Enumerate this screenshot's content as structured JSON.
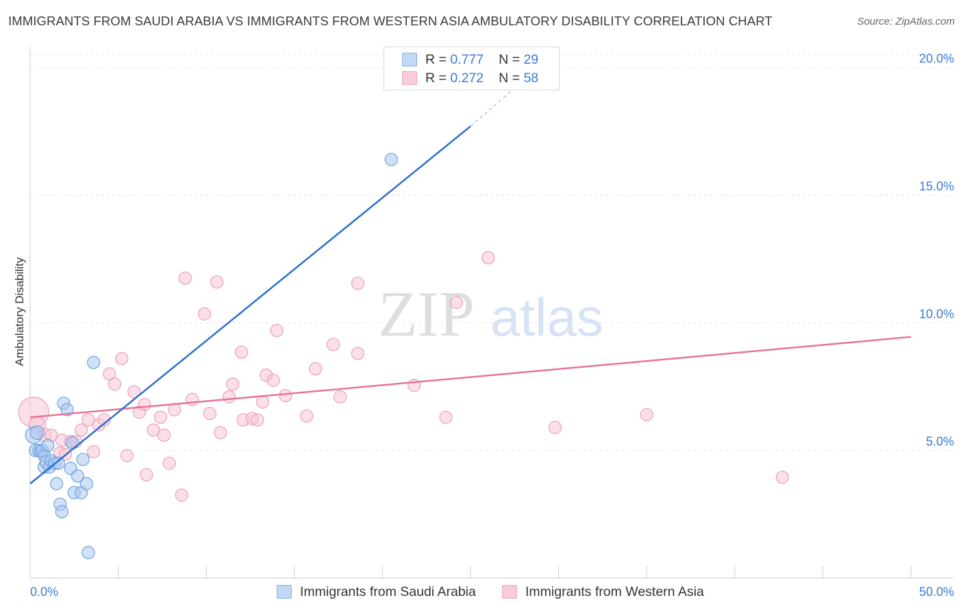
{
  "chart_title": "IMMIGRANTS FROM SAUDI ARABIA VS IMMIGRANTS FROM WESTERN ASIA AMBULATORY DISABILITY CORRELATION CHART",
  "source": "Source: ZipAtlas.com",
  "watermark": {
    "part1": "ZIP",
    "part2": "atlas"
  },
  "legend": {
    "r_label": "R =",
    "n_label": "N =",
    "rows": [
      {
        "r": "0.777",
        "n": "29",
        "color": "#a9c8f2"
      },
      {
        "r": "0.272",
        "n": "58",
        "color": "#f7b9cc"
      }
    ]
  },
  "colors": {
    "blue_fill": "#a9c8f2",
    "blue_stroke": "#6ea0e0",
    "blue_line": "#2b6fcf",
    "pink_fill": "#f7c6d5",
    "pink_stroke": "#eb9fb8",
    "pink_line": "#e5739b",
    "tick_label": "#3a7bd5",
    "grid": "#e2e2e2"
  },
  "chart_data": {
    "type": "scatter",
    "title": "IMMIGRANTS FROM SAUDI ARABIA VS IMMIGRANTS FROM WESTERN ASIA AMBULATORY DISABILITY CORRELATION CHART",
    "xlabel": "",
    "ylabel": "Ambulatory Disability",
    "xlim": [
      0,
      50
    ],
    "ylim": [
      0,
      20.5
    ],
    "x_tick_labels": [
      "0.0%",
      "50.0%"
    ],
    "y_ticks": [
      {
        "value": 5,
        "label": "5.0%"
      },
      {
        "value": 10,
        "label": "10.0%"
      },
      {
        "value": 15,
        "label": "15.0%"
      },
      {
        "value": 20,
        "label": "20.0%"
      }
    ],
    "grid": true,
    "legend_position": "top-center",
    "series": [
      {
        "name": "Immigrants from Saudi Arabia",
        "color": "#a9c8f2",
        "trend": {
          "x": [
            0,
            25
          ],
          "y": [
            3.7,
            17.7
          ],
          "dashed_to": [
            27.5,
            19.2
          ]
        },
        "points": [
          [
            0.2,
            5.6,
            12
          ],
          [
            0.3,
            5.0,
            9
          ],
          [
            0.4,
            5.7,
            10
          ],
          [
            0.5,
            5.0,
            9
          ],
          [
            0.6,
            4.95,
            9
          ],
          [
            0.7,
            5.0,
            9
          ],
          [
            0.8,
            4.8,
            9
          ],
          [
            0.8,
            4.35,
            9
          ],
          [
            0.9,
            4.55,
            9
          ],
          [
            1.0,
            5.2,
            9
          ],
          [
            1.1,
            4.35,
            9
          ],
          [
            1.2,
            4.6,
            9
          ],
          [
            1.4,
            4.5,
            9
          ],
          [
            1.5,
            3.7,
            9
          ],
          [
            1.6,
            4.5,
            9
          ],
          [
            1.7,
            2.9,
            9
          ],
          [
            1.8,
            2.6,
            9
          ],
          [
            1.9,
            6.85,
            9
          ],
          [
            2.1,
            6.6,
            9
          ],
          [
            2.3,
            4.3,
            9
          ],
          [
            2.4,
            5.3,
            9
          ],
          [
            2.5,
            3.35,
            9
          ],
          [
            2.7,
            4.0,
            9
          ],
          [
            2.9,
            3.35,
            9
          ],
          [
            3.0,
            4.65,
            9
          ],
          [
            3.2,
            3.7,
            9
          ],
          [
            3.3,
            1.0,
            9
          ],
          [
            3.6,
            8.45,
            9
          ],
          [
            20.5,
            16.4,
            9
          ]
        ]
      },
      {
        "name": "Immigrants from Western Asia",
        "color": "#f7c6d5",
        "trend": {
          "x": [
            0,
            50
          ],
          "y": [
            6.3,
            9.45
          ]
        },
        "points": [
          [
            0.2,
            6.5,
            22
          ],
          [
            0.4,
            6.0,
            12
          ],
          [
            0.8,
            5.6,
            10
          ],
          [
            1.2,
            5.6,
            9
          ],
          [
            1.7,
            4.9,
            9
          ],
          [
            1.8,
            5.4,
            9
          ],
          [
            2.0,
            4.85,
            9
          ],
          [
            2.3,
            5.35,
            9
          ],
          [
            2.6,
            5.35,
            9
          ],
          [
            2.9,
            5.8,
            9
          ],
          [
            3.3,
            6.2,
            9
          ],
          [
            3.6,
            4.95,
            9
          ],
          [
            3.9,
            6.0,
            9
          ],
          [
            4.2,
            6.2,
            9
          ],
          [
            4.5,
            8.0,
            9
          ],
          [
            4.8,
            7.6,
            9
          ],
          [
            5.2,
            8.6,
            9
          ],
          [
            5.5,
            4.8,
            9
          ],
          [
            5.9,
            7.3,
            9
          ],
          [
            6.2,
            6.5,
            9
          ],
          [
            6.5,
            6.8,
            9
          ],
          [
            6.6,
            4.05,
            9
          ],
          [
            7.0,
            5.8,
            9
          ],
          [
            7.4,
            6.3,
            9
          ],
          [
            7.6,
            5.6,
            9
          ],
          [
            7.9,
            4.5,
            9
          ],
          [
            8.2,
            6.6,
            9
          ],
          [
            8.6,
            3.25,
            9
          ],
          [
            8.8,
            11.75,
            9
          ],
          [
            9.2,
            7.0,
            9
          ],
          [
            9.9,
            10.35,
            9
          ],
          [
            10.2,
            6.45,
            9
          ],
          [
            10.6,
            11.6,
            9
          ],
          [
            10.8,
            5.7,
            9
          ],
          [
            11.3,
            7.1,
            9
          ],
          [
            11.5,
            7.6,
            9
          ],
          [
            12.0,
            8.85,
            9
          ],
          [
            12.1,
            6.2,
            9
          ],
          [
            12.6,
            6.25,
            9
          ],
          [
            12.9,
            6.2,
            9
          ],
          [
            13.2,
            6.9,
            9
          ],
          [
            13.4,
            7.95,
            9
          ],
          [
            13.8,
            7.75,
            9
          ],
          [
            14.0,
            9.7,
            9
          ],
          [
            14.5,
            7.15,
            9
          ],
          [
            15.7,
            6.35,
            9
          ],
          [
            16.2,
            8.2,
            9
          ],
          [
            17.2,
            9.15,
            9
          ],
          [
            17.6,
            7.1,
            9
          ],
          [
            18.6,
            8.8,
            9
          ],
          [
            18.6,
            11.55,
            9
          ],
          [
            21.8,
            7.55,
            9
          ],
          [
            23.6,
            6.3,
            9
          ],
          [
            24.2,
            10.8,
            9
          ],
          [
            26.0,
            12.55,
            9
          ],
          [
            29.8,
            5.9,
            9
          ],
          [
            35.0,
            6.4,
            9
          ],
          [
            42.7,
            3.95,
            9
          ]
        ]
      }
    ]
  }
}
